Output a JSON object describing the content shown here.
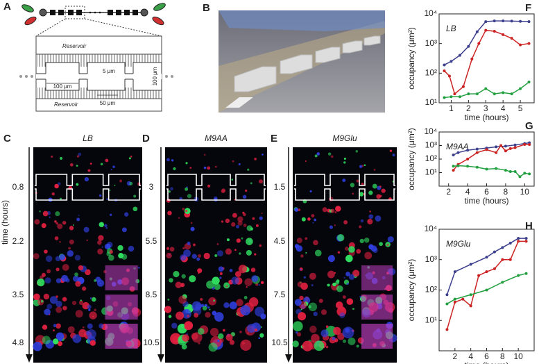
{
  "panels": {
    "labels": [
      "A",
      "B",
      "C",
      "D",
      "E",
      "F",
      "G",
      "H"
    ]
  },
  "schematic": {
    "reservoir_top": "Reservoir",
    "reservoir_bottom": "Reservoir",
    "dims": [
      "100 μm",
      "5 μm",
      "100 μm",
      "50 μm"
    ]
  },
  "micrographs": [
    {
      "title": "LB",
      "times": [
        0.8,
        2.2,
        3.5,
        4.8
      ]
    },
    {
      "title": "M9AA",
      "times": [
        3,
        5.5,
        8.5,
        10.5
      ]
    },
    {
      "title": "M9Glu",
      "times": [
        1.5,
        4.5,
        7.5,
        10.5
      ]
    }
  ],
  "time_axis_label": "time (hours)",
  "chart_data": [
    {
      "type": "line",
      "title": "LB",
      "xlabel": "time (hours)",
      "ylabel": "occupancy (μm²)",
      "log_y": true,
      "xlim": [
        0.3,
        5.8
      ],
      "xticks": [
        1,
        2,
        3,
        4,
        5
      ],
      "ylim": [
        10,
        10000
      ],
      "yticks": [
        {
          "value": 10,
          "label": "10¹"
        },
        {
          "value": 100,
          "label": "10²"
        },
        {
          "value": 1000,
          "label": "10³"
        },
        {
          "value": 10000,
          "label": "10⁴"
        }
      ],
      "series": [
        {
          "color": "#3b3f8c",
          "x": [
            0.6,
            1.0,
            1.5,
            2.0,
            2.5,
            3.0,
            3.5,
            4.0,
            4.5,
            5.0,
            5.5
          ],
          "values": [
            190,
            250,
            400,
            800,
            2500,
            5500,
            5800,
            5800,
            5700,
            5600,
            5500
          ]
        },
        {
          "color": "#cc2222",
          "x": [
            0.6,
            0.9,
            1.2,
            1.7,
            2.2,
            2.6,
            3.0,
            3.5,
            4.0,
            4.5,
            5.0,
            5.5
          ],
          "values": [
            120,
            80,
            20,
            35,
            300,
            1000,
            2800,
            2600,
            2000,
            1500,
            900,
            1000
          ]
        },
        {
          "color": "#22a040",
          "x": [
            0.6,
            1.0,
            1.5,
            2.0,
            2.5,
            3.0,
            3.5,
            4.0,
            4.5,
            5.0,
            5.5
          ],
          "values": [
            15,
            16,
            16,
            20,
            20,
            30,
            20,
            22,
            20,
            30,
            50
          ]
        }
      ]
    },
    {
      "type": "line",
      "title": "M9AA",
      "xlabel": "time (hours)",
      "ylabel": "occupancy (μm²)",
      "log_y": true,
      "xlim": [
        1,
        11
      ],
      "xticks": [
        2,
        4,
        6,
        8,
        10
      ],
      "ylim": [
        1,
        10000
      ],
      "yticks": [
        {
          "value": 10,
          "label": "10¹"
        },
        {
          "value": 100,
          "label": "10²"
        },
        {
          "value": 1000,
          "label": "10³"
        },
        {
          "value": 10000,
          "label": "10⁴"
        }
      ],
      "series": [
        {
          "color": "#3b3f8c",
          "x": [
            2.5,
            3,
            4,
            5,
            6,
            7,
            8,
            9,
            10,
            10.5
          ],
          "values": [
            200,
            300,
            450,
            550,
            650,
            800,
            900,
            1100,
            1400,
            1600
          ]
        },
        {
          "color": "#cc2222",
          "x": [
            2.5,
            3,
            4,
            5,
            6,
            7,
            7.5,
            8,
            8.5,
            9,
            10,
            10.5
          ],
          "values": [
            15,
            40,
            100,
            300,
            500,
            300,
            1000,
            400,
            600,
            700,
            1200,
            1200
          ]
        },
        {
          "color": "#22a040",
          "x": [
            2.5,
            3,
            4,
            5,
            6,
            7,
            8,
            8.5,
            9,
            9.5,
            10,
            10.5
          ],
          "values": [
            30,
            32,
            30,
            25,
            18,
            20,
            15,
            12,
            12,
            5,
            9,
            8
          ]
        }
      ]
    },
    {
      "type": "line",
      "title": "M9Glu",
      "xlabel": "time (hours)",
      "ylabel": "occupancy (μm²)",
      "log_y": true,
      "xlim": [
        0,
        12
      ],
      "xticks": [
        2,
        4,
        6,
        8,
        10
      ],
      "ylim": [
        1,
        10000
      ],
      "yticks": [
        {
          "value": 10,
          "label": "10¹"
        },
        {
          "value": 100,
          "label": "10²"
        },
        {
          "value": 1000,
          "label": "10³"
        },
        {
          "value": 10000,
          "label": "10⁴"
        }
      ],
      "series": [
        {
          "color": "#3b3f8c",
          "x": [
            1,
            2,
            4,
            6,
            7,
            8,
            9,
            10,
            11
          ],
          "values": [
            70,
            400,
            700,
            1200,
            1800,
            2500,
            3500,
            5000,
            5000
          ]
        },
        {
          "color": "#cc2222",
          "x": [
            1,
            2,
            3,
            4,
            5,
            6,
            7,
            8,
            9,
            10,
            11
          ],
          "values": [
            5,
            40,
            50,
            30,
            300,
            400,
            500,
            1000,
            1000,
            4000,
            4000
          ]
        },
        {
          "color": "#22a040",
          "x": [
            1,
            2,
            4,
            6,
            8,
            10,
            11
          ],
          "values": [
            35,
            50,
            70,
            100,
            180,
            300,
            350
          ]
        }
      ]
    }
  ]
}
